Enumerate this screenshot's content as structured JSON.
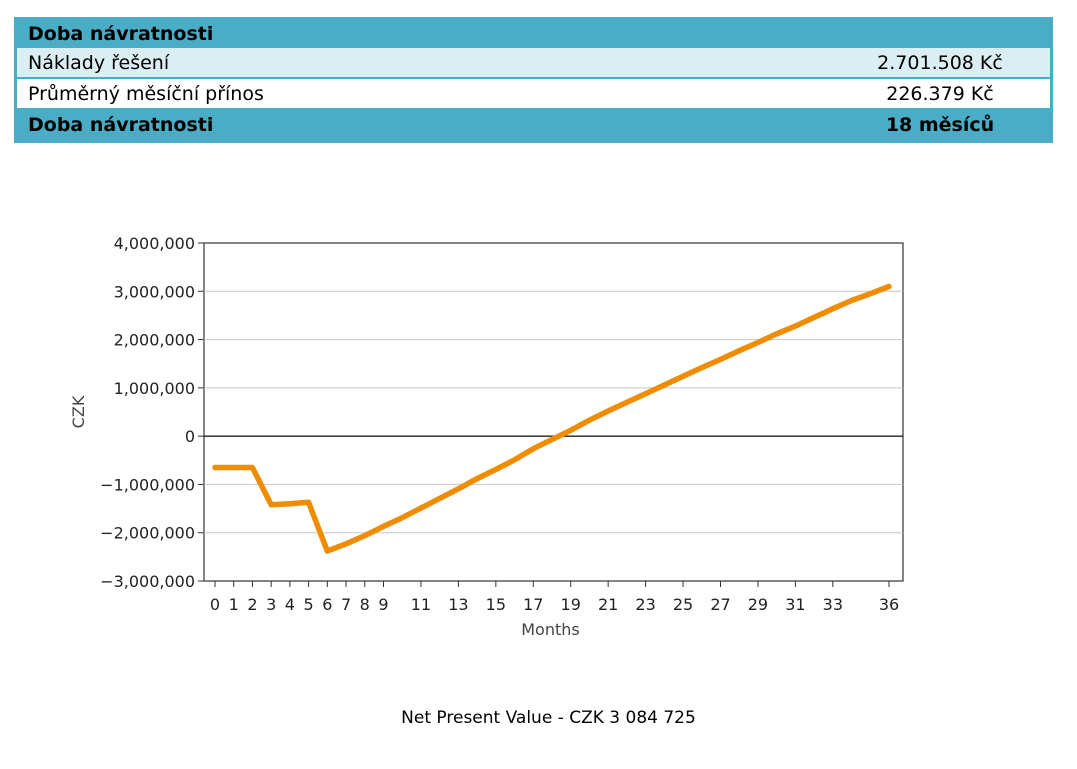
{
  "table": {
    "header_label": "Doba návratnosti",
    "rows": [
      {
        "label": "Náklady řešení",
        "value": "2.701.508 Kč"
      },
      {
        "label": "Průměrný měsíční přínos",
        "value": "226.379 Kč"
      }
    ],
    "total": {
      "label": "Doba návratnosti",
      "value": "18 měsíců"
    }
  },
  "chart_data": {
    "type": "line",
    "title": "",
    "xlabel": "Months",
    "ylabel": "CZK",
    "ylim": [
      -3000000,
      4000000
    ],
    "yticks": [
      -3000000,
      -2000000,
      -1000000,
      0,
      1000000,
      2000000,
      3000000,
      4000000
    ],
    "ytick_labels": [
      "−3,000,000",
      "−2,000,000",
      "−1,000,000",
      "0",
      "1,000,000",
      "2,000,000",
      "3,000,000",
      "4,000,000"
    ],
    "xlim": [
      0,
      36
    ],
    "xticks": [
      0,
      1,
      2,
      3,
      4,
      5,
      6,
      7,
      8,
      9,
      11,
      13,
      15,
      17,
      19,
      21,
      23,
      25,
      27,
      29,
      31,
      33,
      36
    ],
    "grid": true,
    "color": "#f08c00",
    "series": [
      {
        "x": [
          0,
          1,
          2,
          3,
          4,
          5,
          6,
          7,
          8,
          9,
          10,
          11,
          12,
          13,
          14,
          15,
          16,
          17,
          18,
          19,
          20,
          21,
          22,
          23,
          24,
          25,
          26,
          27,
          28,
          29,
          30,
          31,
          32,
          33,
          34,
          35,
          36
        ],
        "values": [
          -650000,
          -650000,
          -650000,
          -1420000,
          -1400000,
          -1370000,
          -2380000,
          -2230000,
          -2060000,
          -1870000,
          -1690000,
          -1490000,
          -1290000,
          -1090000,
          -880000,
          -690000,
          -490000,
          -260000,
          -70000,
          120000,
          330000,
          520000,
          700000,
          880000,
          1060000,
          1240000,
          1420000,
          1590000,
          1770000,
          1940000,
          2120000,
          2280000,
          2460000,
          2640000,
          2810000,
          2950000,
          3100000
        ]
      }
    ]
  },
  "footer": {
    "npv_text": "Net Present Value - CZK 3 084 725"
  }
}
